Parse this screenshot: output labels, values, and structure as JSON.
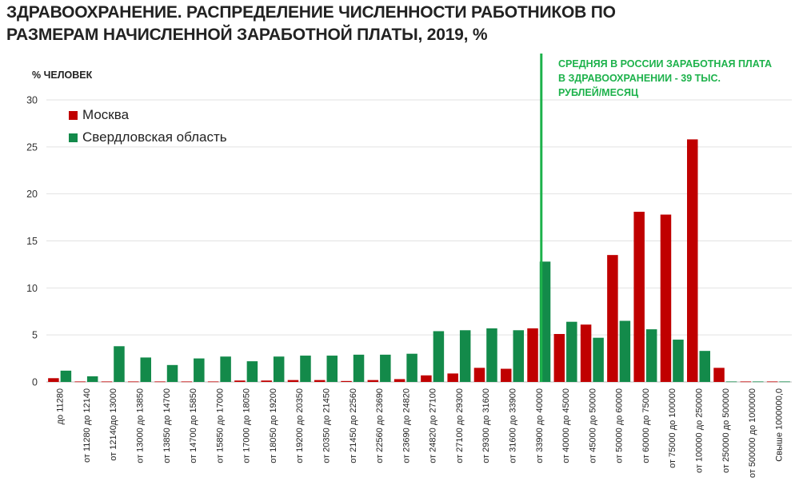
{
  "title_lines": [
    "ЗДРАВООХРАНЕНИЕ. РАСПРЕДЕЛЕНИЕ ЧИСЛЕННОСТИ РАБОТНИКОВ ПО",
    "РАЗМЕРАМ НАЧИСЛЕННОЙ ЗАРАБОТНОЙ ПЛАТЫ, 2019, %"
  ],
  "chart_data": {
    "type": "bar",
    "ylabel": "% ЧЕЛОВЕК",
    "ylim": [
      0,
      30
    ],
    "yticks": [
      0,
      5,
      10,
      15,
      20,
      25,
      30
    ],
    "grid": true,
    "legend_position": "top-left",
    "categories": [
      "до 11280",
      "от 11280 до 12140",
      "от 12140до 13000",
      "от 13000 до 13850",
      "от 13850 до 14700",
      "от 14700 до 15850",
      "от 15850 до 17000",
      "от 17000 до 18050",
      "от 18050 до 19200",
      "от 19200 до 20350",
      "от 20350 до 21450",
      "от 21450 до 22560",
      "от 22560 до 23690",
      "от 23690 до 24820",
      "от 24820 до 27100",
      "от 27100 до 29300",
      "от 29300 до 31600",
      "от 31600 до 33900",
      "от 33900 до 40000",
      "от 40000 до 45000",
      "от 45000 до 50000",
      "от 50000 до 60000",
      "от 60000 до 75000",
      "от 75000 до 100000",
      "от 100000 до 250000",
      "от 250000 до 500000",
      "от 500000 до 1000000",
      "Свыше 1000000,0"
    ],
    "series": [
      {
        "name": "Москва",
        "color": "#c00000",
        "values": [
          0.4,
          0.05,
          0.05,
          0.05,
          0.05,
          0.05,
          0.05,
          0.15,
          0.15,
          0.2,
          0.2,
          0.1,
          0.2,
          0.3,
          0.7,
          0.9,
          1.5,
          1.4,
          5.7,
          5.1,
          6.1,
          13.5,
          18.1,
          17.8,
          25.8,
          1.5,
          0.05,
          0.05
        ]
      },
      {
        "name": "Свердловская область",
        "color": "#138a4a",
        "values": [
          1.2,
          0.6,
          3.8,
          2.6,
          1.8,
          2.5,
          2.7,
          2.2,
          2.7,
          2.8,
          2.8,
          2.9,
          2.9,
          3.0,
          5.4,
          5.5,
          5.7,
          5.5,
          12.8,
          6.4,
          4.7,
          6.5,
          5.6,
          4.5,
          3.3,
          0.05,
          0.05,
          0.05
        ]
      }
    ],
    "annotation": {
      "lines": [
        "СРЕДНЯЯ В РОССИИ ЗАРАБОТНАЯ ПЛАТА",
        "В ЗДРАВООХРАНЕНИИ - 39 ТЫС.",
        "РУБЛЕЙ/МЕСЯЦ"
      ],
      "category": "от 33900 до 40000",
      "value": 39,
      "color": "#1db24b"
    }
  }
}
